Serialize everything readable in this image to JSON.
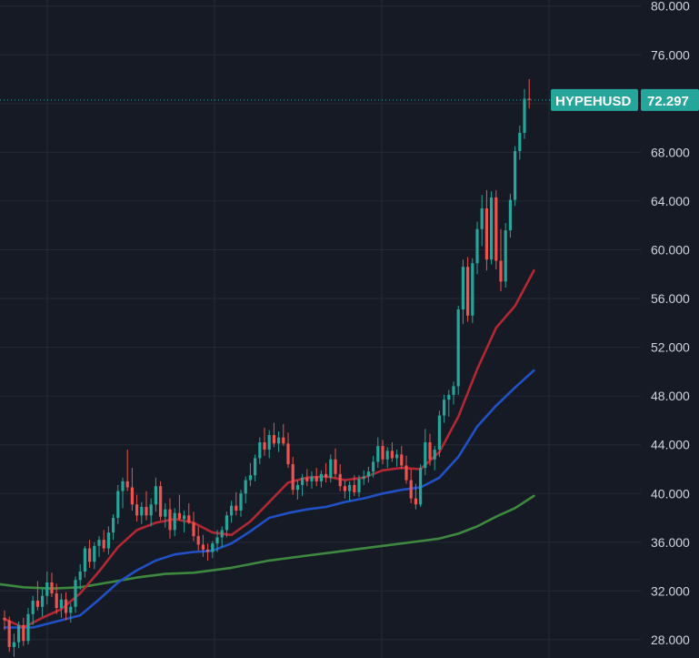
{
  "colors": {
    "background": "#161a25",
    "grid": "#252936",
    "up": "#26a69a",
    "down": "#ef5350",
    "ma_fast": "#b22833",
    "ma_mid": "#2151c6",
    "ma_slow": "#3d8a3e",
    "tag": "#26a69a",
    "text": "#d1d4dc"
  },
  "chart_data": {
    "type": "candlestick",
    "symbol": "HYPEHUSD",
    "last_price": "72.297",
    "last_value": 72.297,
    "y_range": [
      26.5,
      80.5
    ],
    "y_ticks": [
      {
        "value": 80,
        "label": "80.000"
      },
      {
        "value": 76,
        "label": "76.000"
      },
      {
        "value": 72,
        "label": "72.000"
      },
      {
        "value": 68,
        "label": "68.000"
      },
      {
        "value": 64,
        "label": "64.000"
      },
      {
        "value": 60,
        "label": "60.000"
      },
      {
        "value": 56,
        "label": "56.000"
      },
      {
        "value": 52,
        "label": "52.000"
      },
      {
        "value": 48,
        "label": "48.000"
      },
      {
        "value": 44,
        "label": "44.000"
      },
      {
        "value": 40,
        "label": "40.000"
      },
      {
        "value": 36,
        "label": "36.000"
      },
      {
        "value": 32,
        "label": "32.000"
      },
      {
        "value": 28,
        "label": "28.000"
      }
    ],
    "grid": true,
    "candles": [
      [
        29.8,
        30.4,
        28.8,
        29.6
      ],
      [
        29.6,
        29.9,
        27.0,
        27.4
      ],
      [
        27.4,
        28.5,
        26.6,
        27.8
      ],
      [
        27.8,
        29.5,
        27.3,
        29.2
      ],
      [
        29.2,
        29.8,
        27.5,
        27.9
      ],
      [
        27.9,
        30.6,
        27.6,
        30.1
      ],
      [
        30.1,
        31.6,
        29.2,
        31.2
      ],
      [
        31.2,
        32.8,
        30.4,
        30.7
      ],
      [
        30.7,
        32.2,
        29.9,
        31.6
      ],
      [
        31.6,
        33.6,
        30.9,
        32.7
      ],
      [
        32.7,
        33.5,
        31.5,
        31.8
      ],
      [
        31.8,
        32.6,
        30.1,
        30.6
      ],
      [
        30.6,
        31.8,
        29.8,
        31.3
      ],
      [
        31.3,
        31.9,
        29.6,
        30.2
      ],
      [
        30.2,
        31.0,
        29.4,
        30.7
      ],
      [
        30.7,
        33.2,
        30.2,
        32.9
      ],
      [
        32.9,
        34.2,
        32.1,
        33.6
      ],
      [
        33.6,
        35.7,
        33.1,
        35.5
      ],
      [
        35.5,
        36.2,
        33.9,
        34.4
      ],
      [
        34.4,
        36.0,
        33.8,
        35.7
      ],
      [
        35.7,
        36.5,
        34.8,
        36.2
      ],
      [
        36.2,
        37.0,
        35.2,
        35.5
      ],
      [
        35.5,
        37.3,
        35.0,
        36.8
      ],
      [
        36.8,
        38.3,
        36.2,
        38.0
      ],
      [
        38.0,
        40.7,
        37.5,
        40.2
      ],
      [
        40.2,
        41.3,
        38.8,
        41.0
      ],
      [
        41.0,
        43.6,
        40.2,
        40.5
      ],
      [
        40.5,
        42.1,
        38.6,
        39.1
      ],
      [
        39.1,
        39.9,
        37.7,
        38.2
      ],
      [
        38.2,
        39.3,
        37.5,
        38.9
      ],
      [
        38.9,
        40.2,
        37.8,
        38.2
      ],
      [
        38.2,
        39.6,
        37.3,
        39.1
      ],
      [
        39.1,
        41.3,
        38.5,
        40.6
      ],
      [
        40.6,
        41.0,
        37.8,
        38.1
      ],
      [
        38.1,
        39.2,
        37.2,
        38.7
      ],
      [
        38.7,
        39.6,
        36.3,
        37.0
      ],
      [
        37.0,
        38.8,
        36.5,
        38.4
      ],
      [
        38.4,
        39.9,
        37.8,
        37.9
      ],
      [
        37.9,
        38.6,
        36.8,
        38.2
      ],
      [
        38.2,
        39.2,
        37.5,
        37.6
      ],
      [
        37.6,
        38.5,
        36.1,
        36.5
      ],
      [
        36.5,
        37.3,
        35.3,
        35.8
      ],
      [
        35.8,
        36.6,
        34.8,
        35.4
      ],
      [
        35.4,
        35.9,
        34.5,
        35.2
      ],
      [
        35.2,
        36.1,
        34.7,
        35.9
      ],
      [
        35.9,
        37.0,
        35.2,
        36.4
      ],
      [
        36.4,
        37.3,
        35.6,
        37.0
      ],
      [
        37.0,
        38.5,
        36.4,
        38.2
      ],
      [
        38.2,
        39.4,
        37.6,
        39.0
      ],
      [
        39.0,
        40.1,
        38.2,
        38.6
      ],
      [
        38.6,
        40.3,
        38.1,
        40.0
      ],
      [
        40.0,
        41.4,
        39.2,
        41.1
      ],
      [
        41.1,
        42.5,
        40.6,
        41.5
      ],
      [
        41.5,
        43.2,
        41.0,
        42.9
      ],
      [
        42.9,
        44.6,
        42.4,
        44.2
      ],
      [
        44.2,
        45.4,
        43.1,
        43.6
      ],
      [
        43.6,
        45.2,
        42.9,
        44.8
      ],
      [
        44.8,
        45.8,
        43.8,
        44.1
      ],
      [
        44.1,
        45.1,
        43.4,
        44.6
      ],
      [
        44.6,
        45.7,
        43.9,
        44.1
      ],
      [
        44.1,
        45.0,
        42.1,
        42.4
      ],
      [
        42.4,
        43.0,
        39.9,
        40.3
      ],
      [
        40.3,
        41.1,
        39.5,
        40.7
      ],
      [
        40.7,
        41.6,
        39.8,
        41.3
      ],
      [
        41.3,
        42.0,
        40.6,
        41.0
      ],
      [
        41.0,
        41.8,
        40.4,
        41.4
      ],
      [
        41.4,
        42.1,
        40.6,
        41.0
      ],
      [
        41.0,
        41.9,
        40.5,
        41.6
      ],
      [
        41.6,
        42.5,
        40.9,
        41.3
      ],
      [
        41.3,
        43.2,
        40.9,
        42.8
      ],
      [
        42.8,
        43.7,
        41.3,
        41.6
      ],
      [
        41.6,
        42.4,
        40.2,
        40.6
      ],
      [
        40.6,
        41.1,
        39.6,
        40.2
      ],
      [
        40.2,
        41.0,
        39.4,
        40.7
      ],
      [
        40.7,
        41.5,
        39.8,
        40.1
      ],
      [
        40.1,
        41.5,
        39.7,
        41.2
      ],
      [
        41.2,
        41.9,
        40.7,
        41.4
      ],
      [
        41.4,
        42.2,
        40.9,
        41.8
      ],
      [
        41.8,
        43.1,
        41.3,
        42.6
      ],
      [
        42.6,
        44.6,
        42.1,
        43.9
      ],
      [
        43.9,
        44.4,
        42.4,
        42.8
      ],
      [
        42.8,
        43.8,
        42.1,
        43.5
      ],
      [
        43.5,
        44.2,
        42.6,
        42.9
      ],
      [
        42.9,
        43.6,
        42.2,
        43.2
      ],
      [
        43.2,
        43.9,
        42.0,
        42.3
      ],
      [
        42.3,
        43.1,
        40.8,
        41.1
      ],
      [
        41.1,
        42.0,
        39.2,
        39.6
      ],
      [
        39.6,
        40.8,
        38.7,
        39.1
      ],
      [
        39.1,
        42.4,
        38.9,
        42.1
      ],
      [
        42.1,
        45.3,
        41.5,
        44.2
      ],
      [
        44.2,
        44.9,
        42.3,
        42.8
      ],
      [
        42.8,
        43.9,
        41.9,
        43.6
      ],
      [
        43.6,
        46.8,
        43.0,
        46.4
      ],
      [
        46.4,
        48.1,
        45.8,
        47.7
      ],
      [
        47.7,
        48.5,
        46.3,
        48.1
      ],
      [
        48.1,
        49.2,
        47.3,
        48.8
      ],
      [
        48.8,
        55.4,
        48.1,
        55.1
      ],
      [
        55.1,
        59.2,
        53.9,
        58.6
      ],
      [
        58.6,
        59.4,
        54.1,
        54.6
      ],
      [
        54.6,
        59.3,
        54.0,
        58.9
      ],
      [
        58.9,
        62.3,
        58.0,
        61.7
      ],
      [
        61.7,
        64.5,
        60.3,
        63.4
      ],
      [
        63.4,
        64.9,
        58.3,
        59.2
      ],
      [
        59.2,
        64.8,
        58.8,
        64.3
      ],
      [
        64.3,
        64.9,
        58.4,
        59.1
      ],
      [
        59.1,
        61.7,
        56.6,
        57.4
      ],
      [
        57.4,
        62.2,
        56.9,
        61.6
      ],
      [
        61.6,
        64.6,
        61.0,
        64.1
      ],
      [
        64.1,
        68.5,
        63.6,
        68.1
      ],
      [
        68.1,
        70.2,
        67.4,
        69.6
      ],
      [
        69.6,
        73.2,
        69.1,
        72.4
      ],
      [
        72.4,
        74.0,
        71.6,
        72.297
      ]
    ],
    "ma_fast": [
      [
        0,
        29.7
      ],
      [
        4,
        29.0
      ],
      [
        8,
        29.8
      ],
      [
        12,
        30.5
      ],
      [
        16,
        31.8
      ],
      [
        20,
        33.6
      ],
      [
        24,
        35.6
      ],
      [
        28,
        37.0
      ],
      [
        32,
        37.6
      ],
      [
        36,
        37.9
      ],
      [
        40,
        37.6
      ],
      [
        44,
        36.8
      ],
      [
        48,
        36.6
      ],
      [
        52,
        37.7
      ],
      [
        56,
        39.3
      ],
      [
        60,
        40.9
      ],
      [
        64,
        41.3
      ],
      [
        68,
        41.4
      ],
      [
        72,
        41.1
      ],
      [
        76,
        41.3
      ],
      [
        80,
        41.9
      ],
      [
        84,
        42.1
      ],
      [
        88,
        42.0
      ],
      [
        92,
        43.4
      ],
      [
        96,
        46.3
      ],
      [
        100,
        50.2
      ],
      [
        104,
        53.6
      ],
      [
        108,
        55.4
      ],
      [
        112,
        58.3
      ]
    ],
    "ma_mid": [
      [
        0,
        29.0
      ],
      [
        6,
        29.0
      ],
      [
        12,
        29.6
      ],
      [
        16,
        30.0
      ],
      [
        20,
        31.3
      ],
      [
        24,
        32.7
      ],
      [
        28,
        33.7
      ],
      [
        32,
        34.5
      ],
      [
        36,
        35.0
      ],
      [
        40,
        35.2
      ],
      [
        44,
        35.3
      ],
      [
        48,
        35.9
      ],
      [
        52,
        36.9
      ],
      [
        56,
        38.0
      ],
      [
        60,
        38.4
      ],
      [
        64,
        38.7
      ],
      [
        68,
        38.9
      ],
      [
        72,
        39.3
      ],
      [
        76,
        39.6
      ],
      [
        80,
        40.0
      ],
      [
        84,
        40.3
      ],
      [
        88,
        40.5
      ],
      [
        92,
        41.3
      ],
      [
        96,
        43.0
      ],
      [
        100,
        45.5
      ],
      [
        104,
        47.2
      ],
      [
        108,
        48.7
      ],
      [
        112,
        50.1
      ]
    ],
    "ma_slow": [
      [
        -2,
        32.6
      ],
      [
        4,
        32.3
      ],
      [
        10,
        32.2
      ],
      [
        16,
        32.3
      ],
      [
        22,
        32.7
      ],
      [
        28,
        33.1
      ],
      [
        34,
        33.4
      ],
      [
        40,
        33.5
      ],
      [
        48,
        33.9
      ],
      [
        56,
        34.5
      ],
      [
        64,
        34.9
      ],
      [
        72,
        35.3
      ],
      [
        80,
        35.7
      ],
      [
        88,
        36.1
      ],
      [
        92,
        36.3
      ],
      [
        96,
        36.7
      ],
      [
        100,
        37.3
      ],
      [
        104,
        38.1
      ],
      [
        108,
        38.8
      ],
      [
        112,
        39.8
      ]
    ]
  }
}
